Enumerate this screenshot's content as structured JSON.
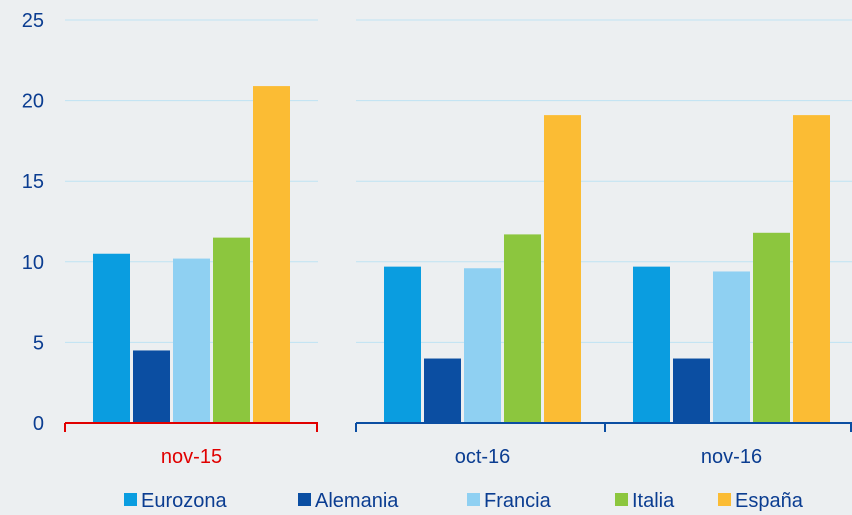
{
  "chart_data": {
    "type": "bar",
    "categories": [
      "nov-15",
      "oct-16",
      "nov-16"
    ],
    "series": [
      {
        "name": "Eurozona",
        "values": [
          10.5,
          9.7,
          9.7
        ],
        "color": "#0a9de0"
      },
      {
        "name": "Alemania",
        "values": [
          4.5,
          4.0,
          4.0
        ],
        "color": "#0b4ea2"
      },
      {
        "name": "Francia",
        "values": [
          10.2,
          9.6,
          9.4
        ],
        "color": "#8fd0f2"
      },
      {
        "name": "Italia",
        "values": [
          11.5,
          11.7,
          11.8
        ],
        "color": "#8cc63e"
      },
      {
        "name": "España",
        "values": [
          20.9,
          19.1,
          19.1
        ],
        "color": "#fbbc34"
      }
    ],
    "ylim": [
      0,
      25
    ],
    "yticks": [
      0,
      5,
      10,
      15,
      20,
      25
    ],
    "grid": true,
    "legend_position": "bottom",
    "highlight_category_color": "#e00000",
    "axis_color": "#0b4ea2",
    "text_color": "#0b3d91",
    "grid_color": "#bfe3f3"
  }
}
